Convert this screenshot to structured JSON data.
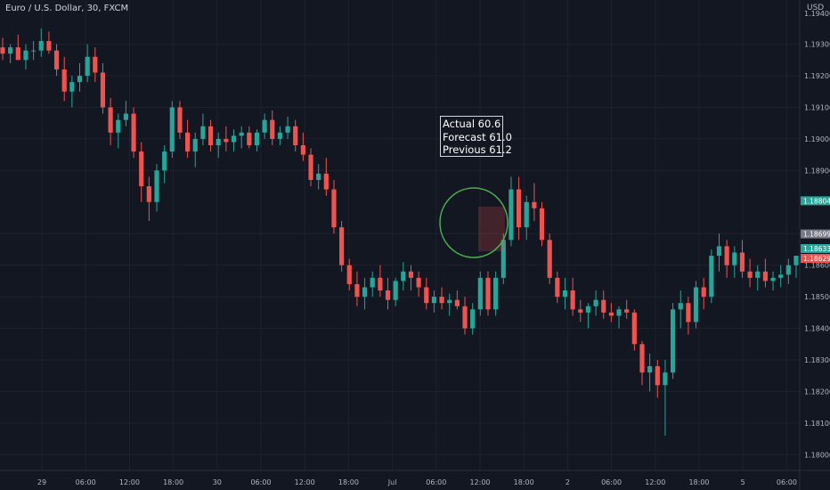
{
  "header": {
    "symbol_title": "Euro / U.S. Dollar, 30, FXCM",
    "currency": "USD"
  },
  "annotation": {
    "lines": [
      "Actual 60.6",
      "Forecast 61.0",
      "Previous 61.2"
    ]
  },
  "colors": {
    "background": "#131722",
    "grid": "#1e222d",
    "up": "#26a69a",
    "down": "#ef5350",
    "annotation_circle": "#4caf50",
    "text": "#b2b5be"
  },
  "chart_data": {
    "type": "candlestick",
    "title": "Euro / U.S. Dollar, 30, FXCM",
    "xlabel": "",
    "ylabel": "",
    "ylim": [
      1.1795,
      1.1944
    ],
    "grid": true,
    "price_axis": {
      "ticks": [
        "1.19300",
        "1.19200",
        "1.19100",
        "1.19000",
        "1.18900",
        "1.18700",
        "1.18600",
        "1.18500",
        "1.18400",
        "1.18300",
        "1.18200",
        "1.18100",
        "1.18000"
      ],
      "top_partial_label": "1.19400"
    },
    "time_axis": {
      "ticks": [
        "29",
        "06:00",
        "12:00",
        "18:00",
        "30",
        "06:00",
        "12:00",
        "18:00",
        "Jul",
        "06:00",
        "12:00",
        "18:00",
        "2",
        "06:00",
        "12:00",
        "18:00",
        "5",
        "06:00"
      ]
    },
    "price_badges": [
      {
        "label": "1.18804",
        "value": 1.18804,
        "color": "#26a69a"
      },
      {
        "label": "1.18699",
        "value": 1.18699,
        "color": "#787b86"
      },
      {
        "label": "1.18633",
        "value": 1.18633,
        "color": "#26a69a"
      },
      {
        "label": "1.18629",
        "value": 1.18629,
        "color": "#ef5350"
      }
    ],
    "candles": [
      [
        1.1929,
        1.1932,
        1.1925,
        1.1927
      ],
      [
        1.1927,
        1.193,
        1.1924,
        1.1929
      ],
      [
        1.1929,
        1.1933,
        1.1926,
        1.1925
      ],
      [
        1.1925,
        1.193,
        1.1922,
        1.1928
      ],
      [
        1.1928,
        1.1931,
        1.1925,
        1.1928
      ],
      [
        1.1928,
        1.1935,
        1.1926,
        1.1931
      ],
      [
        1.1931,
        1.1934,
        1.1927,
        1.1928
      ],
      [
        1.1928,
        1.193,
        1.192,
        1.1922
      ],
      [
        1.1922,
        1.1926,
        1.1912,
        1.1915
      ],
      [
        1.1915,
        1.192,
        1.191,
        1.1918
      ],
      [
        1.1918,
        1.1924,
        1.1915,
        1.192
      ],
      [
        1.192,
        1.193,
        1.1918,
        1.1926
      ],
      [
        1.1926,
        1.1929,
        1.1918,
        1.1921
      ],
      [
        1.1921,
        1.1924,
        1.1908,
        1.191
      ],
      [
        1.191,
        1.1913,
        1.1898,
        1.1902
      ],
      [
        1.1902,
        1.1908,
        1.1897,
        1.1906
      ],
      [
        1.1906,
        1.1912,
        1.1904,
        1.1908
      ],
      [
        1.1908,
        1.191,
        1.1894,
        1.1896
      ],
      [
        1.1896,
        1.1899,
        1.188,
        1.1885
      ],
      [
        1.1885,
        1.1888,
        1.1874,
        1.188
      ],
      [
        1.188,
        1.1892,
        1.1877,
        1.189
      ],
      [
        1.189,
        1.1898,
        1.1886,
        1.1896
      ],
      [
        1.1896,
        1.1912,
        1.1894,
        1.191
      ],
      [
        1.191,
        1.1912,
        1.19,
        1.1902
      ],
      [
        1.1902,
        1.1906,
        1.1894,
        1.1896
      ],
      [
        1.1896,
        1.1902,
        1.1891,
        1.19
      ],
      [
        1.19,
        1.1908,
        1.1898,
        1.1904
      ],
      [
        1.1904,
        1.1906,
        1.1896,
        1.1898
      ],
      [
        1.1898,
        1.1902,
        1.1894,
        1.19
      ],
      [
        1.19,
        1.1904,
        1.1896,
        1.1899
      ],
      [
        1.1899,
        1.1903,
        1.1896,
        1.1901
      ],
      [
        1.1901,
        1.1904,
        1.1897,
        1.1902
      ],
      [
        1.1902,
        1.1904,
        1.1897,
        1.1898
      ],
      [
        1.1898,
        1.1903,
        1.1896,
        1.1902
      ],
      [
        1.1902,
        1.1908,
        1.19,
        1.1906
      ],
      [
        1.1906,
        1.1909,
        1.1898,
        1.19
      ],
      [
        1.19,
        1.1904,
        1.1898,
        1.1902
      ],
      [
        1.1902,
        1.1907,
        1.19,
        1.1904
      ],
      [
        1.1904,
        1.1906,
        1.1896,
        1.1898
      ],
      [
        1.1898,
        1.1902,
        1.1893,
        1.1895
      ],
      [
        1.1895,
        1.1897,
        1.1885,
        1.1887
      ],
      [
        1.1887,
        1.1892,
        1.1884,
        1.1889
      ],
      [
        1.1889,
        1.1894,
        1.1882,
        1.1884
      ],
      [
        1.1884,
        1.1887,
        1.187,
        1.1872
      ],
      [
        1.1872,
        1.1874,
        1.1858,
        1.186
      ],
      [
        1.186,
        1.1862,
        1.1852,
        1.1854
      ],
      [
        1.1854,
        1.1858,
        1.1847,
        1.185
      ],
      [
        1.185,
        1.1856,
        1.1846,
        1.1853
      ],
      [
        1.1853,
        1.1858,
        1.185,
        1.1856
      ],
      [
        1.1856,
        1.186,
        1.185,
        1.1852
      ],
      [
        1.1852,
        1.1856,
        1.1846,
        1.1849
      ],
      [
        1.1849,
        1.1856,
        1.1847,
        1.1855
      ],
      [
        1.1855,
        1.1861,
        1.1852,
        1.1858
      ],
      [
        1.1858,
        1.186,
        1.1852,
        1.1856
      ],
      [
        1.1856,
        1.1858,
        1.185,
        1.1853
      ],
      [
        1.1853,
        1.1856,
        1.1846,
        1.1848
      ],
      [
        1.1848,
        1.1852,
        1.1845,
        1.185
      ],
      [
        1.185,
        1.1853,
        1.1846,
        1.1848
      ],
      [
        1.1848,
        1.1851,
        1.1844,
        1.1849
      ],
      [
        1.1849,
        1.1852,
        1.1846,
        1.1847
      ],
      [
        1.1847,
        1.185,
        1.1838,
        1.184
      ],
      [
        1.184,
        1.1848,
        1.1838,
        1.1846
      ],
      [
        1.1846,
        1.1858,
        1.1844,
        1.1856
      ],
      [
        1.1856,
        1.1858,
        1.1844,
        1.1846
      ],
      [
        1.1846,
        1.1858,
        1.1844,
        1.1856
      ],
      [
        1.1856,
        1.187,
        1.1854,
        1.1868
      ],
      [
        1.1868,
        1.1888,
        1.1866,
        1.1884
      ],
      [
        1.1884,
        1.1888,
        1.1868,
        1.1872
      ],
      [
        1.1872,
        1.1882,
        1.1868,
        1.188
      ],
      [
        1.188,
        1.1886,
        1.1874,
        1.1878
      ],
      [
        1.1878,
        1.188,
        1.1866,
        1.1868
      ],
      [
        1.1868,
        1.187,
        1.1854,
        1.1856
      ],
      [
        1.1856,
        1.1858,
        1.1848,
        1.185
      ],
      [
        1.185,
        1.1856,
        1.1846,
        1.1852
      ],
      [
        1.1852,
        1.1856,
        1.1844,
        1.1846
      ],
      [
        1.1846,
        1.1849,
        1.1842,
        1.1845
      ],
      [
        1.1845,
        1.1848,
        1.184,
        1.1847
      ],
      [
        1.1847,
        1.1852,
        1.1844,
        1.1849
      ],
      [
        1.1849,
        1.1852,
        1.1843,
        1.1845
      ],
      [
        1.1845,
        1.1848,
        1.1842,
        1.1844
      ],
      [
        1.1844,
        1.1847,
        1.184,
        1.1846
      ],
      [
        1.1846,
        1.1849,
        1.1843,
        1.1845
      ],
      [
        1.1845,
        1.1846,
        1.1833,
        1.1835
      ],
      [
        1.1835,
        1.1836,
        1.1822,
        1.1826
      ],
      [
        1.1826,
        1.1832,
        1.182,
        1.1828
      ],
      [
        1.1828,
        1.183,
        1.1818,
        1.1822
      ],
      [
        1.1822,
        1.183,
        1.1806,
        1.1826
      ],
      [
        1.1826,
        1.1848,
        1.1824,
        1.1846
      ],
      [
        1.1846,
        1.1852,
        1.184,
        1.1848
      ],
      [
        1.1848,
        1.185,
        1.1838,
        1.1842
      ],
      [
        1.1842,
        1.1855,
        1.184,
        1.1853
      ],
      [
        1.1853,
        1.1856,
        1.1846,
        1.185
      ],
      [
        1.185,
        1.1865,
        1.1848,
        1.1863
      ],
      [
        1.1863,
        1.187,
        1.1858,
        1.1866
      ],
      [
        1.1866,
        1.1868,
        1.1856,
        1.186
      ],
      [
        1.186,
        1.1866,
        1.1856,
        1.1864
      ],
      [
        1.1864,
        1.1868,
        1.1856,
        1.1858
      ],
      [
        1.1858,
        1.1862,
        1.1853,
        1.1856
      ],
      [
        1.1856,
        1.186,
        1.1852,
        1.1858
      ],
      [
        1.1858,
        1.1862,
        1.1853,
        1.1855
      ],
      [
        1.1855,
        1.1858,
        1.1852,
        1.1856
      ],
      [
        1.1856,
        1.186,
        1.1853,
        1.1857
      ],
      [
        1.1857,
        1.1862,
        1.1854,
        1.186
      ],
      [
        1.186,
        1.1863,
        1.1856,
        1.1863
      ]
    ]
  }
}
